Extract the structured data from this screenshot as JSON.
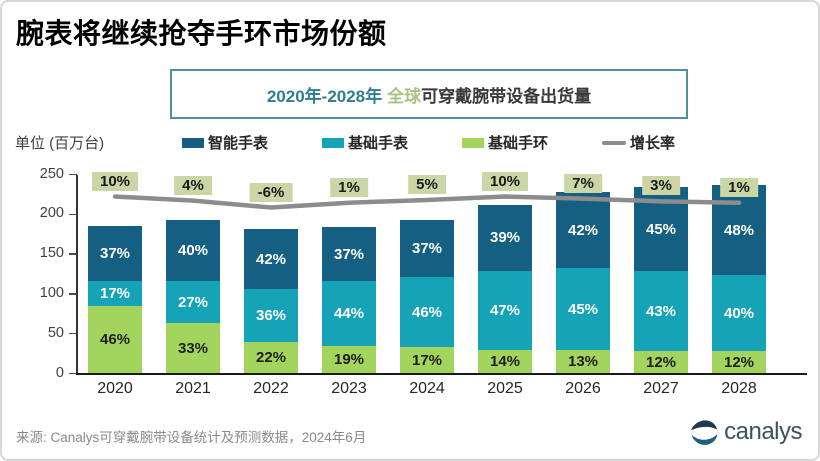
{
  "header": {
    "title": "腕表将继续抢夺手环市场份额"
  },
  "subtitle": {
    "part_range": "2020年-2028年",
    "part_scope": "全球",
    "part_rest": "可穿戴腕带设备出货量"
  },
  "unit_label": "单位 (百万台)",
  "legend": [
    {
      "label": "智能手表",
      "color": "#156082",
      "type": "swatch"
    },
    {
      "label": "基础手表",
      "color": "#16A3B8",
      "type": "swatch"
    },
    {
      "label": "基础手环",
      "color": "#A3D45E",
      "type": "swatch"
    },
    {
      "label": "增长率",
      "color": "#8C8C8C",
      "type": "line"
    }
  ],
  "chart_data": {
    "type": "bar",
    "subtype": "stacked-bar-with-growth-line",
    "title": "2020年-2028年 全球可穿戴腕带设备出货量",
    "ylabel": "单位 (百万台)",
    "categories": [
      "2020",
      "2021",
      "2022",
      "2023",
      "2024",
      "2025",
      "2026",
      "2027",
      "2028"
    ],
    "totals_millions": [
      185,
      193,
      182,
      184,
      193,
      212,
      228,
      234,
      237
    ],
    "series": [
      {
        "name": "基础手环",
        "color": "#A3D45E",
        "text_color": "#1F1F1F",
        "pct": [
          46,
          33,
          22,
          19,
          17,
          14,
          13,
          12,
          12
        ]
      },
      {
        "name": "基础手表",
        "color": "#16A3B8",
        "text_color": "#FFFFFF",
        "pct": [
          17,
          27,
          36,
          44,
          46,
          47,
          45,
          43,
          40
        ]
      },
      {
        "name": "智能手表",
        "color": "#156082",
        "text_color": "#FFFFFF",
        "pct": [
          37,
          40,
          42,
          37,
          37,
          39,
          42,
          45,
          48
        ]
      }
    ],
    "growth_rate_pct": [
      10,
      4,
      -6,
      1,
      5,
      10,
      7,
      3,
      1
    ],
    "growth_line_color": "#8C8C8C",
    "growth_label_bg": "#CBD5A5",
    "yticks": [
      0,
      50,
      100,
      150,
      200,
      250
    ],
    "ylim": [
      0,
      250
    ],
    "grid": false,
    "legend_position": "top"
  },
  "footer": {
    "source": "来源: Canalys可穿戴腕带设备统计及预测数据，2024年6月",
    "logo_text": "canalys"
  }
}
